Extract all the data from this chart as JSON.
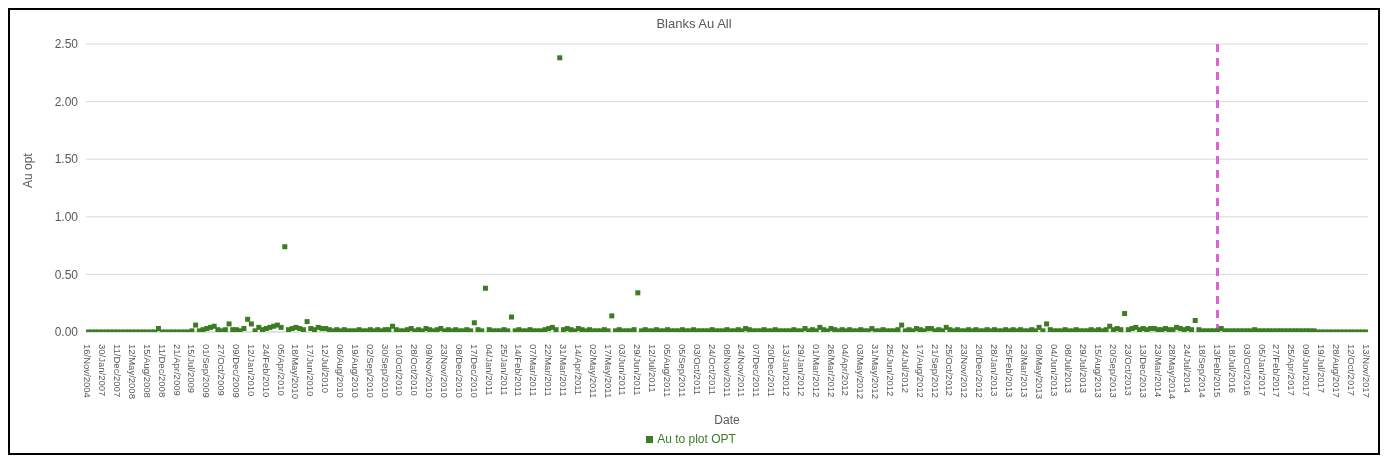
{
  "chart_data": {
    "type": "scatter",
    "title": "Blanks Au All",
    "xlabel": "Date",
    "ylabel": "Au opt",
    "categories": [
      "16/Nov/2004",
      null,
      null,
      null,
      "30/Jan/2007",
      null,
      null,
      null,
      "11/Dec/2007",
      null,
      null,
      null,
      "12/May/2008",
      null,
      null,
      null,
      "15/Aug/2008",
      null,
      null,
      null,
      "11/Dec/2008",
      null,
      null,
      null,
      "21/Apr/2009",
      null,
      null,
      null,
      "15/Jul/2009",
      null,
      null,
      null,
      "01/Sep/2009",
      null,
      null,
      null,
      "27/Oct/2009",
      null,
      null,
      null,
      "09/Dec/2009",
      null,
      null,
      null,
      "12/Jan/2010",
      null,
      null,
      null,
      "24/Feb/2010",
      null,
      null,
      null,
      "05/Apr/2010",
      null,
      null,
      null,
      "18/May/2010",
      null,
      null,
      null,
      "17/Jun/2010",
      null,
      null,
      null,
      "12/Jul/2010",
      null,
      null,
      null,
      "06/Aug/2010",
      null,
      null,
      null,
      "19/Aug/2010",
      null,
      null,
      null,
      "02/Sep/2010",
      null,
      null,
      null,
      "30/Sep/2010",
      null,
      null,
      null,
      "10/Oct/2010",
      null,
      null,
      null,
      "28/Oct/2010",
      null,
      null,
      null,
      "09/Nov/2010",
      null,
      null,
      null,
      "23/Nov/2010",
      null,
      null,
      null,
      "08/Dec/2010",
      null,
      null,
      null,
      "17/Dec/2010",
      null,
      null,
      null,
      "04/Jan/2011",
      null,
      null,
      null,
      "25/Jan/2011",
      null,
      null,
      null,
      "14/Feb/2011",
      null,
      null,
      null,
      "07/Mar/2011",
      null,
      null,
      null,
      "22/Mar/2011",
      null,
      null,
      null,
      "31/Mar/2011",
      null,
      null,
      null,
      "14/Apr/2011",
      null,
      null,
      null,
      "02/May/2011",
      null,
      null,
      null,
      "17/May/2011",
      null,
      null,
      null,
      "03/Jun/2011",
      null,
      null,
      null,
      "29/Jun/2011",
      null,
      null,
      null,
      "12/Jul/2011",
      null,
      null,
      null,
      "05/Aug/2011",
      null,
      null,
      null,
      "05/Sep/2011",
      null,
      null,
      null,
      "03/Oct/2011",
      null,
      null,
      null,
      "24/Oct/2011",
      null,
      null,
      null,
      "08/Nov/2011",
      null,
      null,
      null,
      "24/Nov/2011",
      null,
      null,
      null,
      "07/Dec/2011",
      null,
      null,
      null,
      "20/Dec/2011",
      null,
      null,
      null,
      "13/Jan/2012",
      null,
      null,
      null,
      "29/Jan/2012",
      null,
      null,
      null,
      "01/Mar/2012",
      null,
      null,
      null,
      "26/Mar/2012",
      null,
      null,
      null,
      "04/Apr/2012",
      null,
      null,
      null,
      "03/May/2012",
      null,
      null,
      null,
      "31/May/2012",
      null,
      null,
      null,
      "25/Jun/2012",
      null,
      null,
      null,
      "24/Jul/2012",
      null,
      null,
      null,
      "17/Aug/2012",
      null,
      null,
      null,
      "21/Sep/2012",
      null,
      null,
      null,
      "25/Oct/2012",
      null,
      null,
      null,
      "23/Nov/2012",
      null,
      null,
      null,
      "20/Dec/2012",
      null,
      null,
      null,
      "28/Jan/2013",
      null,
      null,
      null,
      "25/Feb/2013",
      null,
      null,
      null,
      "23/Mar/2013",
      null,
      null,
      null,
      "08/May/2013",
      null,
      null,
      null,
      "04/Jun/2013",
      null,
      null,
      null,
      "08/Jul/2013",
      null,
      null,
      null,
      "29/Jul/2013",
      null,
      null,
      null,
      "15/Aug/2013",
      null,
      null,
      null,
      "20/Sep/2013",
      null,
      null,
      null,
      "23/Oct/2013",
      null,
      null,
      null,
      "13/Dec/2013",
      null,
      null,
      null,
      "23/Mar/2014",
      null,
      null,
      null,
      "28/May/2014",
      null,
      null,
      null,
      "24/Jul/2014",
      null,
      null,
      null,
      "18/Sep/2014",
      null,
      null,
      null,
      "13/Feb/2015",
      null,
      null,
      null,
      "18/Jul/2016",
      null,
      null,
      null,
      "03/Oct/2016",
      null,
      null,
      null,
      "05/Jan/2017",
      null,
      null,
      null,
      "27/Feb/2017",
      null,
      null,
      null,
      "25/Apr/2017",
      null,
      null,
      null,
      "09/Jun/2017",
      null,
      null,
      null,
      "19/Jul/2017",
      null,
      null,
      null,
      "28/Aug/2017",
      null,
      null,
      null,
      "12/Oct/2017",
      null,
      null,
      null,
      "13/Nov/2017"
    ],
    "series": [
      {
        "name": "Au to plot OPT",
        "color": "#3a7d22",
        "values": [
          0,
          0,
          0,
          0,
          0,
          0,
          0,
          0,
          0,
          0,
          0,
          0,
          0,
          0,
          0,
          0,
          0,
          0,
          0,
          0.03,
          0,
          0,
          0,
          0,
          0,
          0,
          0,
          0,
          0.01,
          0.06,
          0.01,
          0.02,
          0.03,
          0.04,
          0.05,
          0.02,
          0.01,
          0.02,
          0.07,
          0.02,
          0.02,
          0.01,
          0.03,
          0.11,
          0.07,
          0.01,
          0.04,
          0.02,
          0.03,
          0.04,
          0.05,
          0.06,
          0.04,
          0.74,
          0.02,
          0.03,
          0.04,
          0.03,
          0.02,
          0.09,
          0.03,
          0.02,
          0.04,
          0.03,
          0.03,
          0.02,
          0.01,
          0.02,
          0.01,
          0.02,
          0.01,
          0.01,
          0.01,
          0.02,
          0.01,
          0.01,
          0.02,
          0.01,
          0.02,
          0.01,
          0.02,
          0.02,
          0.05,
          0.02,
          0.01,
          0.01,
          0.02,
          0.03,
          0.01,
          0.02,
          0.01,
          0.03,
          0.02,
          0.01,
          0.02,
          0.03,
          0.01,
          0.02,
          0.01,
          0.02,
          0.01,
          0.01,
          0.02,
          0.01,
          0.08,
          0.02,
          0.01,
          0.38,
          0.02,
          0.01,
          0.01,
          0.01,
          0.02,
          0.01,
          0.13,
          0.01,
          0.02,
          0.01,
          0.01,
          0.02,
          0.01,
          0.01,
          0.01,
          0.02,
          0.03,
          0.04,
          0.02,
          2.38,
          0.02,
          0.03,
          0.02,
          0.01,
          0.03,
          0.02,
          0.01,
          0.02,
          0.01,
          0.01,
          0.01,
          0.02,
          0.01,
          0.14,
          0.01,
          0.02,
          0.01,
          0.01,
          0.01,
          0.02,
          0.34,
          0.01,
          0.02,
          0.01,
          0.01,
          0.02,
          0.01,
          0.01,
          0.02,
          0.01,
          0.01,
          0.01,
          0.02,
          0.01,
          0.01,
          0.02,
          0.01,
          0.01,
          0.01,
          0.01,
          0.02,
          0.01,
          0.01,
          0.01,
          0.02,
          0.01,
          0.01,
          0.02,
          0.01,
          0.03,
          0.02,
          0.01,
          0.01,
          0.01,
          0.02,
          0.01,
          0.01,
          0.02,
          0.01,
          0.01,
          0.01,
          0.01,
          0.02,
          0.01,
          0.01,
          0.03,
          0.01,
          0.02,
          0.01,
          0.04,
          0.02,
          0.01,
          0.03,
          0.02,
          0.01,
          0.02,
          0.01,
          0.02,
          0.01,
          0.01,
          0.02,
          0.01,
          0.01,
          0.03,
          0.01,
          0.01,
          0.02,
          0.01,
          0.01,
          0.01,
          0.02,
          0.06,
          0.01,
          0.02,
          0.01,
          0.03,
          0.02,
          0.01,
          0.03,
          0.03,
          0.01,
          0.02,
          0.01,
          0.04,
          0.02,
          0.01,
          0.02,
          0.01,
          0.01,
          0.02,
          0.01,
          0.02,
          0.01,
          0.01,
          0.02,
          0.01,
          0.02,
          0.01,
          0.01,
          0.02,
          0.01,
          0.02,
          0.01,
          0.02,
          0.01,
          0.01,
          0.02,
          0.01,
          0.04,
          0.01,
          0.07,
          0.02,
          0.01,
          0.01,
          0.01,
          0.02,
          0.01,
          0.01,
          0.02,
          0.01,
          0.01,
          0.01,
          0.02,
          0.01,
          0.02,
          0.01,
          0.02,
          0.05,
          0.02,
          0.03,
          0.02,
          0.16,
          0.02,
          0.03,
          0.04,
          0.02,
          0.03,
          0.02,
          0.03,
          0.03,
          0.02,
          0.02,
          0.03,
          0.02,
          0.02,
          0.04,
          0.03,
          0.02,
          0.03,
          0.02,
          0.1,
          0.02,
          0.01,
          0.01,
          0.01,
          0.01,
          0.01,
          0.03,
          0.01,
          0.01,
          0.01,
          0.01,
          0.01,
          0.01,
          0.01,
          0.01,
          0.02,
          0.01,
          0.01,
          0.01,
          0.01,
          0.01,
          0.01,
          0.01,
          0.01,
          0.01,
          0.01,
          0.01,
          0.01,
          0.01,
          0.01,
          0.01,
          0.01,
          0,
          0,
          0,
          0,
          0,
          0,
          0,
          0,
          0,
          0,
          0,
          0,
          0,
          0
        ]
      }
    ],
    "ylim": [
      0,
      2.5
    ],
    "yticks": [
      {
        "value": 0,
        "label": "0.00"
      },
      {
        "value": 0.5,
        "label": "0.50"
      },
      {
        "value": 1,
        "label": "1.00"
      },
      {
        "value": 1.5,
        "label": "1.50"
      },
      {
        "value": 2,
        "label": "2.00"
      },
      {
        "value": 2.5,
        "label": "2.50"
      }
    ],
    "grid": "y",
    "legend": "bottom",
    "marker": "square",
    "ref_lines": [
      {
        "axis": "x",
        "value": "13/Feb/2015",
        "color": "#da64d2",
        "line_style": "dashed"
      }
    ]
  }
}
